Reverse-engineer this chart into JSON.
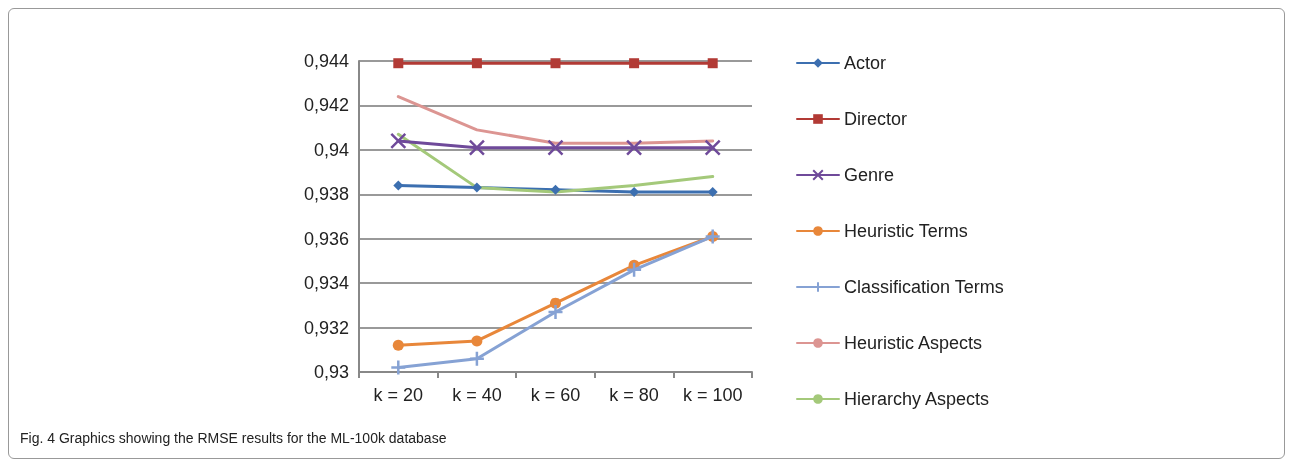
{
  "chart_data": {
    "type": "line",
    "categories": [
      "k = 20",
      "k = 40",
      "k = 60",
      "k = 80",
      "k = 100"
    ],
    "series": [
      {
        "name": "Actor",
        "color": "#3c6fb0",
        "marker": "diamond",
        "values": [
          0.9384,
          0.9383,
          0.9382,
          0.9381,
          0.9381
        ]
      },
      {
        "name": "Director",
        "color": "#b23a35",
        "marker": "square",
        "values": [
          0.9439,
          0.9439,
          0.9439,
          0.9439,
          0.9439
        ]
      },
      {
        "name": "Genre",
        "color": "#6f4a9a",
        "marker": "cross",
        "values": [
          0.9404,
          0.9401,
          0.9401,
          0.9401,
          0.9401
        ]
      },
      {
        "name": "Heuristic Terms",
        "color": "#e8873a",
        "marker": "circle",
        "values": [
          0.9312,
          0.9314,
          0.9331,
          0.9348,
          0.9361
        ]
      },
      {
        "name": "Classification Terms",
        "color": "#86a2d4",
        "marker": "plus",
        "values": [
          0.9302,
          0.9306,
          0.9327,
          0.9346,
          0.9361
        ]
      },
      {
        "name": "Heuristic Aspects",
        "color": "#dc9592",
        "marker": "none",
        "values": [
          0.9424,
          0.9409,
          0.9403,
          0.9403,
          0.9404
        ]
      },
      {
        "name": "Hierarchy Aspects",
        "color": "#a4c97a",
        "marker": "none",
        "values": [
          0.9407,
          0.9383,
          0.9381,
          0.9384,
          0.9388
        ]
      }
    ],
    "ylim": [
      0.93,
      0.944
    ],
    "yticks": [
      {
        "value": 0.93,
        "label": "0,93"
      },
      {
        "value": 0.932,
        "label": "0,932"
      },
      {
        "value": 0.934,
        "label": "0,934"
      },
      {
        "value": 0.936,
        "label": "0,936"
      },
      {
        "value": 0.938,
        "label": "0,938"
      },
      {
        "value": 0.94,
        "label": "0,94"
      },
      {
        "value": 0.942,
        "label": "0,942"
      },
      {
        "value": 0.944,
        "label": "0,944"
      }
    ],
    "grid": "y",
    "legend": "right",
    "line_style": "solid",
    "annotations": [
      "Fig. 4 Graphics showing the RMSE results for the ML-100k database"
    ]
  }
}
